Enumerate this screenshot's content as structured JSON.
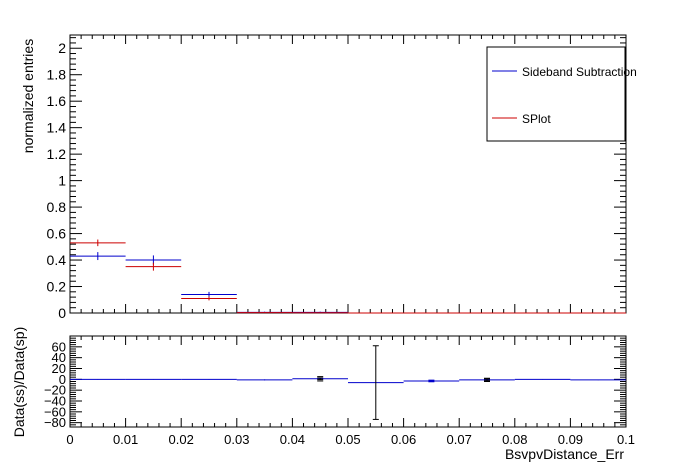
{
  "colors": {
    "ss": "#0000cc",
    "sp": "#cc0000",
    "axis": "#000000"
  },
  "chart_data": [
    {
      "type": "histogram",
      "ylabel": "normalized entries",
      "xlim": [
        0,
        0.1
      ],
      "ylim": [
        0,
        2.1
      ],
      "yticks": [
        0,
        0.2,
        0.4,
        0.6,
        0.8,
        1,
        1.2,
        1.4,
        1.6,
        1.8,
        2
      ],
      "ytick_labels": [
        "0",
        "0.2",
        "0.4",
        "0.6",
        "0.8",
        "1",
        "1.2",
        "1.4",
        "1.6",
        "1.8",
        "2"
      ],
      "bin_edges": [
        0,
        0.01,
        0.02,
        0.03,
        0.04,
        0.05,
        0.06,
        0.07,
        0.08,
        0.09,
        0.1
      ],
      "legend_position": "top-right",
      "series": [
        {
          "name": "Sideband Subtraction",
          "color_key": "ss",
          "values": [
            0.43,
            0.4,
            0.14,
            0.005,
            0.005,
            0,
            0,
            0,
            0,
            0
          ],
          "errors": [
            0.03,
            0.035,
            0.02,
            0.005,
            0.005,
            0,
            0,
            0,
            0,
            0
          ]
        },
        {
          "name": "SPlot",
          "color_key": "sp",
          "values": [
            0.53,
            0.35,
            0.11,
            0.003,
            0.002,
            0,
            0,
            0,
            0,
            0
          ],
          "errors": [
            0.025,
            0.03,
            0.015,
            0.003,
            0.002,
            0,
            0,
            0,
            0,
            0
          ]
        }
      ]
    },
    {
      "type": "ratio",
      "ylabel": "Data(ss)/Data(sp)",
      "xlabel": "BsvpvDistance_Err",
      "xlim": [
        0,
        0.1
      ],
      "ylim": [
        -88,
        80
      ],
      "yticks": [
        -80,
        -60,
        -40,
        -20,
        0,
        20,
        40,
        60
      ],
      "ytick_labels": [
        "−80",
        "−60",
        "−40",
        "−20",
        "0",
        "20",
        "40",
        "60"
      ],
      "xticks": [
        0,
        0.01,
        0.02,
        0.03,
        0.04,
        0.05,
        0.06,
        0.07,
        0.08,
        0.09,
        0.1
      ],
      "xtick_labels": [
        "0",
        "0.01",
        "0.02",
        "0.03",
        "0.04",
        "0.05",
        "0.06",
        "0.07",
        "0.08",
        "0.09",
        "0.1"
      ],
      "bin_edges": [
        0,
        0.01,
        0.02,
        0.03,
        0.04,
        0.05,
        0.06,
        0.07,
        0.08,
        0.09,
        0.1
      ],
      "values": [
        0,
        0,
        0,
        -1,
        1,
        -6,
        -3,
        -1,
        0,
        -1
      ],
      "errors": [
        0.5,
        0.5,
        0.5,
        1,
        1.5,
        68,
        1.5,
        1.5,
        0.5,
        0.5
      ],
      "bin_error": [
        0,
        0,
        0,
        0,
        4,
        0,
        0,
        3,
        0,
        0
      ]
    }
  ]
}
